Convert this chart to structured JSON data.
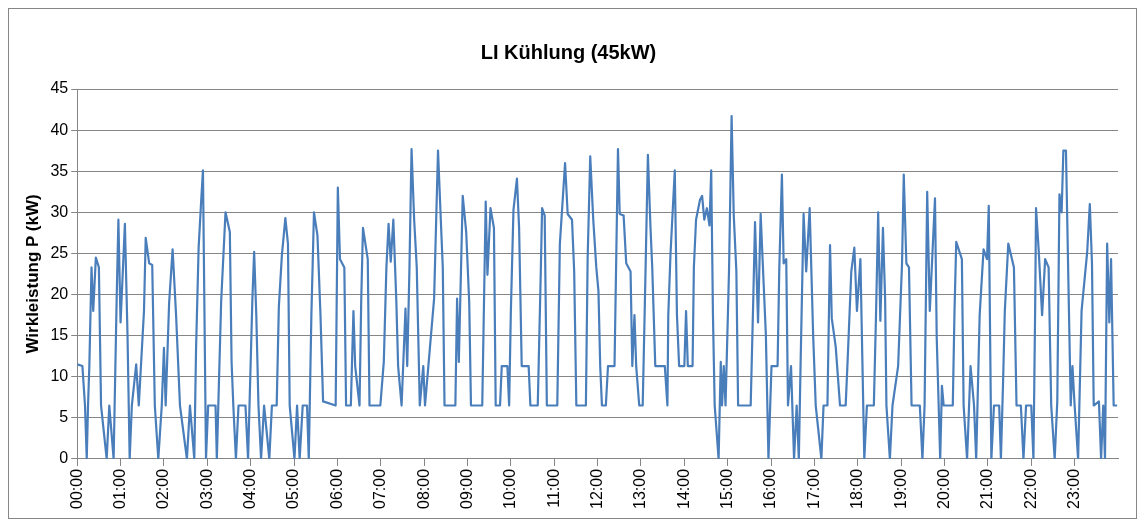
{
  "chart_data": {
    "type": "line",
    "title": "LI Kühlung (45kW)",
    "ylabel": "Wirkleistung P (kW)",
    "xlim": [
      0,
      24
    ],
    "xticks": [
      {
        "value": 0,
        "label": "00:00"
      },
      {
        "value": 1,
        "label": "01:00"
      },
      {
        "value": 2,
        "label": "02:00"
      },
      {
        "value": 3,
        "label": "03:00"
      },
      {
        "value": 4,
        "label": "04:00"
      },
      {
        "value": 5,
        "label": "05:00"
      },
      {
        "value": 6,
        "label": "06:00"
      },
      {
        "value": 7,
        "label": "07:00"
      },
      {
        "value": 8,
        "label": "08:00"
      },
      {
        "value": 9,
        "label": "09:00"
      },
      {
        "value": 10,
        "label": "10:00"
      },
      {
        "value": 11,
        "label": "11:00"
      },
      {
        "value": 12,
        "label": "12:00"
      },
      {
        "value": 13,
        "label": "13:00"
      },
      {
        "value": 14,
        "label": "14:00"
      },
      {
        "value": 15,
        "label": "15:00"
      },
      {
        "value": 16,
        "label": "16:00"
      },
      {
        "value": 17,
        "label": "17:00"
      },
      {
        "value": 18,
        "label": "18:00"
      },
      {
        "value": 19,
        "label": "19:00"
      },
      {
        "value": 20,
        "label": "20:00"
      },
      {
        "value": 21,
        "label": "21:00"
      },
      {
        "value": 22,
        "label": "22:00"
      },
      {
        "value": 23,
        "label": "23:00"
      }
    ],
    "ylim": [
      0,
      45
    ],
    "yticks": [
      0,
      5,
      10,
      15,
      20,
      25,
      30,
      35,
      40,
      45
    ],
    "grid": "y",
    "legend": false,
    "marker": "none",
    "line_style": "solid",
    "series": [
      {
        "color": "#4a7ebb",
        "x": [
          0,
          0.12,
          0.18,
          0.22,
          0.25,
          0.28,
          0.33,
          0.37,
          0.43,
          0.5,
          0.55,
          0.68,
          0.74,
          0.84,
          0.91,
          0.95,
          1.0,
          1.1,
          1.16,
          1.21,
          1.26,
          1.36,
          1.42,
          1.54,
          1.58,
          1.66,
          1.73,
          1.79,
          1.87,
          1.95,
          2.0,
          2.04,
          2.12,
          2.2,
          2.28,
          2.37,
          2.53,
          2.6,
          2.7,
          2.74,
          2.8,
          2.86,
          2.9,
          2.97,
          3.02,
          3.19,
          3.22,
          3.32,
          3.42,
          3.52,
          3.56,
          3.6,
          3.66,
          3.72,
          3.88,
          3.94,
          4.04,
          4.08,
          4.13,
          4.18,
          4.24,
          4.31,
          4.43,
          4.49,
          4.6,
          4.65,
          4.72,
          4.8,
          4.86,
          4.9,
          5.01,
          5.07,
          5.13,
          5.2,
          5.3,
          5.34,
          5.4,
          5.46,
          5.54,
          5.61,
          5.67,
          5.96,
          6.01,
          6.06,
          6.16,
          6.2,
          6.31,
          6.37,
          6.41,
          6.51,
          6.55,
          6.59,
          6.7,
          6.74,
          6.99,
          7.07,
          7.13,
          7.18,
          7.23,
          7.29,
          7.36,
          7.4,
          7.48,
          7.57,
          7.61,
          7.66,
          7.71,
          7.77,
          7.83,
          7.9,
          7.98,
          8.02,
          8.23,
          8.32,
          8.39,
          8.43,
          8.47,
          8.72,
          8.76,
          8.8,
          8.89,
          8.97,
          9.04,
          9.08,
          9.34,
          9.42,
          9.46,
          9.53,
          9.61,
          9.65,
          9.75,
          9.79,
          9.92,
          9.96,
          10.0,
          10.06,
          10.14,
          10.19,
          10.25,
          10.41,
          10.45,
          10.62,
          10.69,
          10.72,
          10.78,
          10.83,
          11.07,
          11.13,
          11.25,
          11.31,
          11.41,
          11.46,
          11.51,
          11.73,
          11.77,
          11.83,
          11.9,
          11.97,
          12.02,
          12.06,
          12.1,
          12.19,
          12.24,
          12.39,
          12.47,
          12.51,
          12.6,
          12.66,
          12.76,
          12.8,
          12.85,
          12.89,
          12.96,
          13.04,
          13.09,
          13.16,
          13.22,
          13.26,
          13.33,
          13.55,
          13.61,
          13.63,
          13.68,
          13.73,
          13.78,
          13.83,
          13.88,
          14.0,
          14.04,
          14.08,
          14.19,
          14.22,
          14.27,
          14.36,
          14.41,
          14.46,
          14.52,
          14.58,
          14.62,
          14.66,
          14.7,
          14.79,
          14.84,
          14.87,
          14.91,
          14.95,
          15.03,
          15.09,
          15.14,
          15.2,
          15.24,
          15.53,
          15.59,
          15.63,
          15.7,
          15.76,
          15.82,
          15.88,
          15.94,
          16.01,
          16.15,
          16.19,
          16.25,
          16.29,
          16.35,
          16.39,
          16.46,
          16.53,
          16.59,
          16.64,
          16.68,
          16.75,
          16.81,
          16.89,
          16.97,
          17.03,
          17.16,
          17.21,
          17.3,
          17.36,
          17.4,
          17.49,
          17.59,
          17.72,
          17.76,
          17.85,
          17.92,
          17.98,
          18.06,
          18.15,
          18.21,
          18.37,
          18.42,
          18.47,
          18.52,
          18.58,
          18.63,
          18.66,
          18.74,
          18.8,
          18.93,
          19.02,
          19.06,
          19.12,
          19.18,
          19.24,
          19.43,
          19.49,
          19.54,
          19.6,
          19.66,
          19.78,
          19.82,
          19.9,
          19.94,
          19.98,
          20.19,
          20.23,
          20.27,
          20.4,
          20.44,
          20.52,
          20.6,
          20.68,
          20.73,
          20.81,
          20.9,
          20.98,
          21.02,
          21.08,
          21.14,
          21.26,
          21.3,
          21.35,
          21.39,
          21.47,
          21.6,
          21.66,
          21.76,
          21.82,
          21.88,
          22.0,
          22.05,
          22.09,
          22.11,
          22.17,
          22.25,
          22.32,
          22.4,
          22.46,
          22.54,
          22.6,
          22.65,
          22.7,
          22.74,
          22.8,
          22.85,
          22.91,
          22.95,
          23.0,
          23.08,
          23.16,
          23.29,
          23.35,
          23.4,
          23.44,
          23.56,
          23.61,
          23.66,
          23.7,
          23.75,
          23.8,
          23.84,
          23.9,
          23.98
        ],
        "values": [
          11.5,
          11.3,
          6.5,
          0,
          6.5,
          11.3,
          23.3,
          18,
          24.5,
          23.3,
          6.5,
          0,
          6.5,
          0,
          19.5,
          29.1,
          16.6,
          28.6,
          15.1,
          0,
          6.5,
          11.5,
          6.5,
          18,
          26.9,
          23.8,
          23.6,
          6.5,
          0,
          6.5,
          13.5,
          6.5,
          19,
          25.5,
          17.5,
          6.5,
          0,
          6.5,
          0,
          13.2,
          25.7,
          31.5,
          35.1,
          0,
          6.5,
          6.5,
          0,
          19.2,
          30,
          27.6,
          11.8,
          6.5,
          0,
          6.5,
          6.5,
          0,
          19.5,
          25.2,
          17.5,
          6.5,
          0,
          6.5,
          0,
          6.5,
          6.5,
          18.5,
          24.8,
          29.3,
          26.2,
          6.5,
          0,
          6.5,
          0,
          6.5,
          6.5,
          0,
          17.5,
          30,
          27.2,
          17.5,
          7,
          6.5,
          33,
          24.3,
          23.3,
          6.5,
          6.5,
          18,
          11.3,
          6.5,
          19.5,
          28.1,
          24.3,
          6.5,
          6.5,
          11.8,
          23.3,
          28.6,
          24,
          29.1,
          19,
          11.3,
          6.5,
          18.3,
          11.3,
          22.8,
          37.7,
          29.1,
          23.3,
          6.5,
          11.3,
          6.5,
          19.5,
          37.5,
          28.4,
          23.3,
          6.5,
          6.5,
          19.5,
          11.8,
          32,
          27.6,
          19,
          6.5,
          6.5,
          31.3,
          22.4,
          30.5,
          28.1,
          6.5,
          6.5,
          11.3,
          11.3,
          6.5,
          18,
          30.3,
          34.1,
          28.1,
          11.3,
          11.3,
          6.5,
          6.5,
          22.8,
          30.5,
          29.6,
          6.5,
          6.5,
          26.2,
          36,
          29.8,
          29.1,
          22.8,
          6.5,
          6.5,
          24.3,
          36.8,
          29.1,
          23.3,
          20.4,
          11.3,
          6.5,
          6.5,
          11.3,
          11.3,
          37.7,
          29.8,
          29.6,
          23.8,
          22.8,
          11.3,
          17.5,
          11.3,
          6.5,
          6.5,
          19,
          37,
          28.1,
          23.3,
          11.3,
          11.3,
          6.5,
          17.5,
          24.8,
          30,
          35.1,
          17.5,
          11.3,
          11.3,
          18,
          11.3,
          11.3,
          23.3,
          29.1,
          31.5,
          32,
          29.1,
          30.5,
          28.4,
          35.1,
          17.5,
          6.5,
          0,
          11.8,
          6.5,
          11.3,
          6.5,
          22.8,
          41.7,
          29.6,
          22.8,
          6.5,
          6.5,
          19.5,
          28.8,
          16.6,
          29.8,
          22.4,
          15.1,
          0,
          11.3,
          11.3,
          23.3,
          34.6,
          23.8,
          24.3,
          6.5,
          11.3,
          0,
          6.5,
          0,
          11.3,
          29.8,
          22.8,
          30.5,
          15.1,
          6.5,
          0,
          6.5,
          6.5,
          26,
          17.1,
          13.7,
          6.5,
          6.5,
          11.3,
          22.8,
          25.7,
          18,
          24.3,
          0,
          6.5,
          6.5,
          17.5,
          30,
          16.8,
          28.1,
          19.5,
          6.5,
          0,
          6.5,
          11.3,
          23.8,
          34.6,
          23.8,
          23.3,
          6.5,
          6.5,
          0,
          6.5,
          32.5,
          18,
          31.7,
          14.7,
          0,
          8.9,
          6.5,
          6.5,
          18,
          26.4,
          24.3,
          6.5,
          0,
          11.3,
          6.5,
          0,
          17.5,
          25.5,
          24.3,
          30.8,
          0,
          6.5,
          6.5,
          0,
          9.4,
          18,
          26.2,
          23.3,
          6.5,
          6.5,
          0,
          6.5,
          6.5,
          0,
          18.5,
          30.5,
          25.5,
          17.5,
          24.3,
          23.3,
          6.5,
          0,
          7,
          32.2,
          30,
          37.5,
          37.5,
          23.3,
          6.5,
          11.3,
          6.5,
          0,
          18,
          25.2,
          31,
          23.8,
          6.5,
          7,
          0,
          6.5,
          0,
          26.2,
          16.6,
          24.3,
          6.5,
          6.5
        ]
      }
    ]
  }
}
